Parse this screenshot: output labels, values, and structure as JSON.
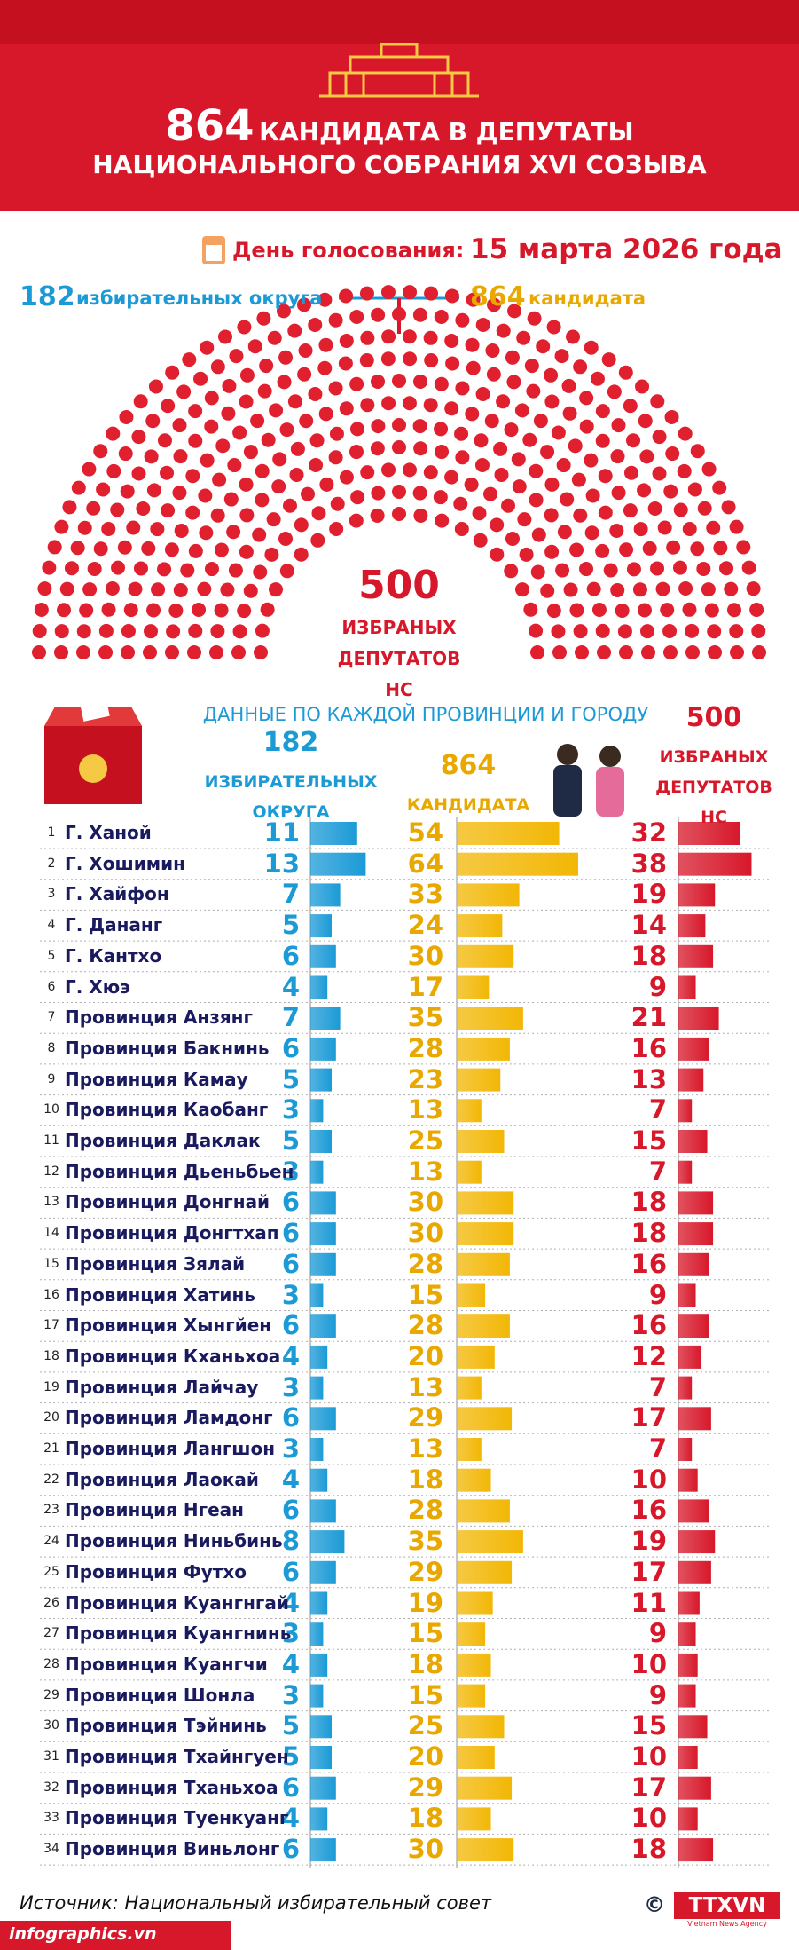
{
  "header": {
    "count": "864",
    "title_line1": "КАНДИДАТА В ДЕПУТАТЫ",
    "title_line2": "НАЦИОНАЛЬНОГО СОБРАНИЯ XVI СОЗЫВА",
    "date_label": "День голосования:",
    "date": "15 марта 2026 года",
    "districts_count": "182",
    "districts_label": "избирательных округа",
    "candidates_count": "864",
    "candidates_label": "кандидата",
    "seats_count": "500",
    "seats_label": "ИЗБРАНЫХ ДЕПУТАТОВ НС"
  },
  "chart_data": {
    "type": "bar",
    "title": "ДАННЫЕ ПО КАЖДОЙ ПРОВИНЦИИ И ГОРОДУ",
    "row_numbers": [
      1,
      2,
      3,
      4,
      5,
      6,
      7,
      8,
      9,
      10,
      11,
      12,
      13,
      14,
      15,
      16,
      17,
      18,
      19,
      20,
      21,
      22,
      23,
      24,
      25,
      26,
      27,
      28,
      29,
      30,
      31,
      32,
      33,
      34
    ],
    "categories": [
      "Г. Ханой",
      "Г. Хошимин",
      "Г. Хайфон",
      "Г. Дананг",
      "Г. Кантхо",
      "Г. Хюэ",
      "Провинция Анзянг",
      "Провинция Бакнинь",
      "Провинция Камау",
      "Провинция Каобанг",
      "Провинция Даклак",
      "Провинция Дьеньбьен",
      "Провинция Донгнай",
      "Провинция Донгтхап",
      "Провинция Зялай",
      "Провинция Хатинь",
      "Провинция Хынгйен",
      "Провинция Кханьхоа",
      "Провинция Лайчау",
      "Провинция Ламдонг",
      "Провинция Лангшон",
      "Провинция Лаокай",
      "Провинция Нгеан",
      "Провинция Ниньбинь",
      "Провинция Футхо",
      "Провинция Куангнгай",
      "Провинция Куангнинь",
      "Провинция Куангчи",
      "Провинция Шонла",
      "Провинция Тэйнинь",
      "Провинция Тхайнгуен",
      "Провинция Тханьхоа",
      "Провинция Туенкуанг",
      "Провинция Виньлонг"
    ],
    "series": [
      {
        "name": "ИЗБИРАТЕЛЬНЫХ ОКРУГА",
        "total": 182,
        "color": "#1b9ad6",
        "values": [
          11,
          13,
          7,
          5,
          6,
          4,
          7,
          6,
          5,
          3,
          5,
          3,
          6,
          6,
          6,
          3,
          6,
          4,
          3,
          6,
          3,
          4,
          6,
          8,
          6,
          4,
          3,
          4,
          3,
          5,
          5,
          6,
          4,
          6
        ]
      },
      {
        "name": "КАНДИДАТА",
        "total": 864,
        "color": "#f2b705",
        "values": [
          54,
          64,
          33,
          24,
          30,
          17,
          35,
          28,
          23,
          13,
          25,
          13,
          30,
          30,
          28,
          15,
          28,
          20,
          13,
          29,
          13,
          18,
          28,
          35,
          29,
          19,
          15,
          18,
          15,
          25,
          20,
          29,
          18,
          30
        ]
      },
      {
        "name": "ИЗБРАНЫХ ДЕПУТАТОВ НС",
        "total": 500,
        "color": "#d7182a",
        "values": [
          32,
          38,
          19,
          14,
          18,
          9,
          21,
          16,
          13,
          7,
          15,
          7,
          18,
          18,
          16,
          9,
          16,
          12,
          7,
          17,
          7,
          10,
          16,
          19,
          17,
          11,
          9,
          10,
          9,
          15,
          10,
          17,
          10,
          18
        ]
      }
    ]
  },
  "footer": {
    "source": "Источник: Национальный избирательный совет",
    "site": "infographics.vn",
    "copyright": "©",
    "logo": "TTXVN",
    "agency": "Vietnam News Agency"
  }
}
